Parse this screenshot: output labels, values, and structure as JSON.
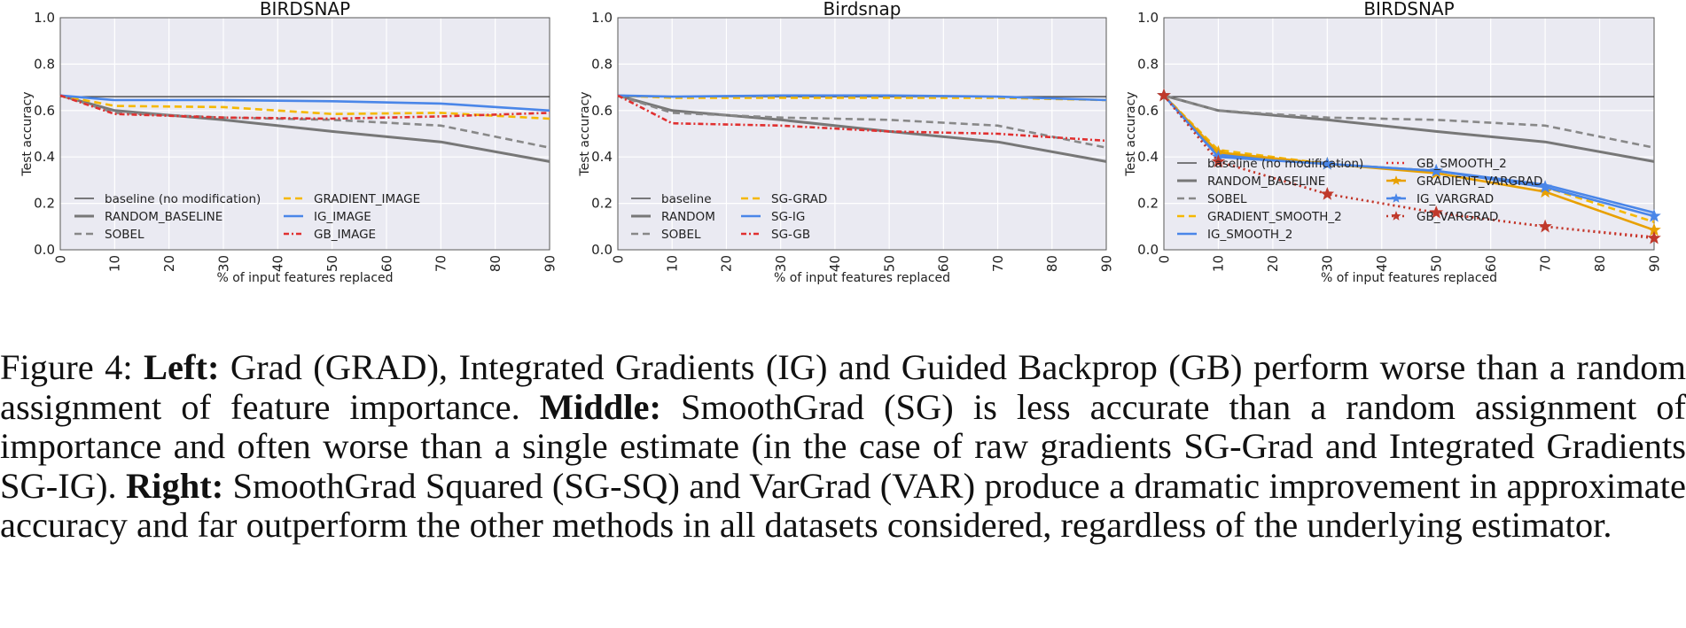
{
  "chart_data": [
    {
      "type": "line",
      "title": "BIRDSNAP",
      "xlabel": "% of input features replaced",
      "ylabel": "Test accuracy",
      "xlim": [
        0,
        90
      ],
      "ylim": [
        0.0,
        1.0
      ],
      "xticks": [
        0,
        10,
        20,
        30,
        40,
        50,
        60,
        70,
        80,
        90
      ],
      "yticks": [
        0.0,
        0.2,
        0.4,
        0.6,
        0.8,
        1.0
      ],
      "grid": true,
      "legend_position": "bottom-left",
      "legend_columns": 2,
      "series": [
        {
          "name": "baseline (no modification)",
          "color": "#333333",
          "style": "solid-thin",
          "marker": "none",
          "x": [
            0,
            90
          ],
          "y": [
            0.66,
            0.66
          ]
        },
        {
          "name": "RANDOM_BASELINE",
          "color": "#777777",
          "style": "solid-thick",
          "marker": "none",
          "x": [
            0,
            10,
            30,
            50,
            70,
            90
          ],
          "y": [
            0.665,
            0.6,
            0.56,
            0.51,
            0.465,
            0.38
          ]
        },
        {
          "name": "SOBEL",
          "color": "#888888",
          "style": "dashed",
          "marker": "none",
          "x": [
            0,
            10,
            30,
            50,
            70,
            90
          ],
          "y": [
            0.665,
            0.59,
            0.57,
            0.56,
            0.535,
            0.44
          ]
        },
        {
          "name": "GRADIENT_IMAGE",
          "color": "#f5b800",
          "style": "dashed",
          "marker": "none",
          "x": [
            0,
            10,
            30,
            50,
            70,
            90
          ],
          "y": [
            0.665,
            0.62,
            0.615,
            0.585,
            0.59,
            0.565
          ]
        },
        {
          "name": "IG_IMAGE",
          "color": "#4a86e8",
          "style": "solid",
          "marker": "none",
          "x": [
            0,
            10,
            30,
            50,
            70,
            90
          ],
          "y": [
            0.665,
            0.645,
            0.645,
            0.64,
            0.63,
            0.6
          ]
        },
        {
          "name": "GB_IMAGE",
          "color": "#e03030",
          "style": "dashdot",
          "marker": "none",
          "x": [
            0,
            10,
            30,
            50,
            70,
            90
          ],
          "y": [
            0.665,
            0.585,
            0.57,
            0.565,
            0.575,
            0.59
          ]
        }
      ]
    },
    {
      "type": "line",
      "title": "Birdsnap",
      "xlabel": "% of input features replaced",
      "ylabel": "Test accuracy",
      "xlim": [
        0,
        90
      ],
      "ylim": [
        0.0,
        1.0
      ],
      "xticks": [
        0,
        10,
        20,
        30,
        40,
        50,
        60,
        70,
        80,
        90
      ],
      "yticks": [
        0.0,
        0.2,
        0.4,
        0.6,
        0.8,
        1.0
      ],
      "grid": true,
      "legend_position": "bottom-left",
      "legend_columns": 2,
      "series": [
        {
          "name": "baseline",
          "color": "#333333",
          "style": "solid-thin",
          "marker": "none",
          "x": [
            0,
            90
          ],
          "y": [
            0.66,
            0.66
          ]
        },
        {
          "name": "RANDOM",
          "color": "#777777",
          "style": "solid-thick",
          "marker": "none",
          "x": [
            0,
            10,
            30,
            50,
            70,
            90
          ],
          "y": [
            0.665,
            0.6,
            0.56,
            0.51,
            0.465,
            0.38
          ]
        },
        {
          "name": "SOBEL",
          "color": "#888888",
          "style": "dashed",
          "marker": "none",
          "x": [
            0,
            10,
            30,
            50,
            70,
            90
          ],
          "y": [
            0.665,
            0.59,
            0.57,
            0.56,
            0.535,
            0.44
          ]
        },
        {
          "name": "SG-GRAD",
          "color": "#f5b800",
          "style": "dashed",
          "marker": "none",
          "x": [
            0,
            10,
            30,
            50,
            70,
            90
          ],
          "y": [
            0.665,
            0.655,
            0.655,
            0.655,
            0.655,
            0.645
          ]
        },
        {
          "name": "SG-IG",
          "color": "#4a86e8",
          "style": "solid",
          "marker": "none",
          "x": [
            0,
            10,
            30,
            50,
            70,
            90
          ],
          "y": [
            0.665,
            0.66,
            0.665,
            0.665,
            0.66,
            0.645
          ]
        },
        {
          "name": "SG-GB",
          "color": "#e03030",
          "style": "dashdot",
          "marker": "none",
          "x": [
            0,
            10,
            30,
            50,
            70,
            90
          ],
          "y": [
            0.665,
            0.545,
            0.535,
            0.51,
            0.5,
            0.47
          ]
        }
      ]
    },
    {
      "type": "line",
      "title": "BIRDSNAP",
      "xlabel": "% of input features replaced",
      "ylabel": "Test accuracy",
      "xlim": [
        0,
        90
      ],
      "ylim": [
        0.0,
        1.0
      ],
      "xticks": [
        0,
        10,
        20,
        30,
        40,
        50,
        60,
        70,
        80,
        90
      ],
      "yticks": [
        0.0,
        0.2,
        0.4,
        0.6,
        0.8,
        1.0
      ],
      "grid": true,
      "legend_position": "center-left",
      "legend_columns": 2,
      "series": [
        {
          "name": "baseline (no modification)",
          "color": "#333333",
          "style": "solid-thin",
          "marker": "none",
          "x": [
            0,
            90
          ],
          "y": [
            0.66,
            0.66
          ]
        },
        {
          "name": "RANDOM_BASELINE",
          "color": "#777777",
          "style": "solid-thick",
          "marker": "none",
          "x": [
            0,
            10,
            30,
            50,
            70,
            90
          ],
          "y": [
            0.665,
            0.6,
            0.56,
            0.51,
            0.465,
            0.38
          ]
        },
        {
          "name": "SOBEL",
          "color": "#888888",
          "style": "dashed",
          "marker": "none",
          "x": [
            0,
            10,
            30,
            50,
            70,
            90
          ],
          "y": [
            0.665,
            0.6,
            0.57,
            0.56,
            0.535,
            0.44
          ]
        },
        {
          "name": "GRADIENT_SMOOTH_2",
          "color": "#f5b800",
          "style": "dashed",
          "marker": "none",
          "x": [
            0,
            10,
            30,
            50,
            70,
            90
          ],
          "y": [
            0.665,
            0.43,
            0.37,
            0.34,
            0.27,
            0.12
          ]
        },
        {
          "name": "IG_SMOOTH_2",
          "color": "#4a86e8",
          "style": "solid",
          "marker": "none",
          "x": [
            0,
            10,
            30,
            50,
            70,
            90
          ],
          "y": [
            0.665,
            0.41,
            0.37,
            0.34,
            0.28,
            0.16
          ]
        },
        {
          "name": "GB_SMOOTH_2",
          "color": "#e03030",
          "style": "dotted",
          "marker": "none",
          "x": [
            0,
            10,
            30,
            50,
            70,
            90
          ],
          "y": [
            0.665,
            0.38,
            0.24,
            0.16,
            0.1,
            0.055
          ]
        },
        {
          "name": "GRADIENT_VARGRAD",
          "color": "#e8a000",
          "style": "solid",
          "marker": "star",
          "x": [
            0,
            10,
            30,
            50,
            70,
            90
          ],
          "y": [
            0.665,
            0.42,
            0.37,
            0.33,
            0.25,
            0.085
          ]
        },
        {
          "name": "IG_VARGRAD",
          "color": "#4a86e8",
          "style": "solid",
          "marker": "star",
          "x": [
            0,
            10,
            30,
            50,
            70,
            90
          ],
          "y": [
            0.665,
            0.4,
            0.37,
            0.34,
            0.27,
            0.145
          ]
        },
        {
          "name": "GB_VARGRAD",
          "color": "#c0392b",
          "style": "dotted",
          "marker": "star",
          "x": [
            0,
            10,
            30,
            50,
            70,
            90
          ],
          "y": [
            0.665,
            0.38,
            0.24,
            0.16,
            0.1,
            0.05
          ]
        }
      ]
    }
  ],
  "caption": {
    "figure_label": "Figure 4: ",
    "left_heading": "Left:",
    "left_text": " Grad (GRAD), Integrated Gradients (IG) and Guided Backprop (GB) perform worse than a random assignment of feature importance. ",
    "middle_heading": "Middle:",
    "middle_text": " SmoothGrad (SG) is less accurate than a random assignment of importance and often worse than a single estimate (in the case of raw gradients SG-Grad and Integrated Gradients SG-IG). ",
    "right_heading": "Right:",
    "right_text": " SmoothGrad Squared (SG-SQ) and VarGrad (VAR) produce a dramatic improvement in approximate accuracy and far outperform the other methods in all datasets considered, regardless of the underlying estimator."
  }
}
